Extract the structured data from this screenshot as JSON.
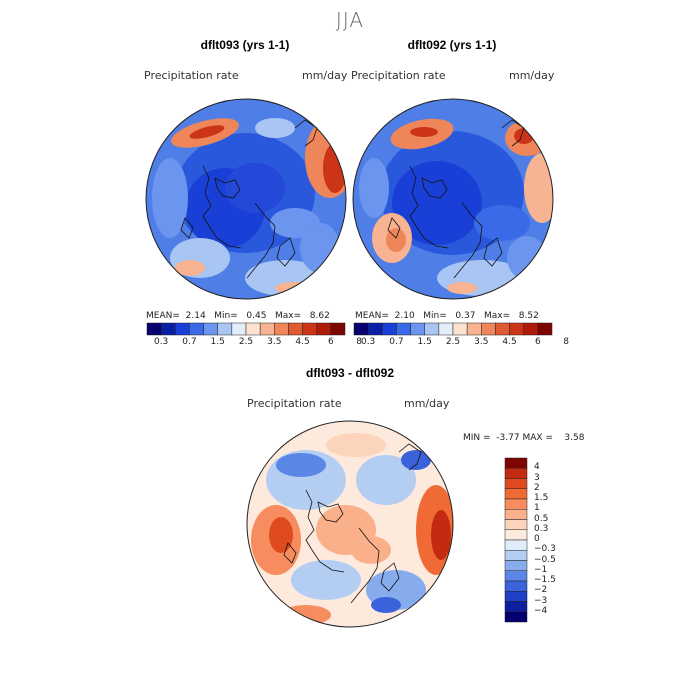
{
  "figure": {
    "season": "JJA"
  },
  "panels": [
    {
      "title": "dflt093 (yrs 1-1)",
      "variable": "Precipitation rate",
      "units": "mm/day",
      "mean_label": "MEAN=",
      "mean": "2.14",
      "min_label": "Min=",
      "min": "0.45",
      "max_label": "Max=",
      "max": "8.62"
    },
    {
      "title": "dflt092 (yrs 1-1)",
      "variable": "Precipitation rate",
      "units": "mm/day",
      "mean_label": "MEAN=",
      "mean": "2.10",
      "min_label": "Min=",
      "min": "0.37",
      "max_label": "Max=",
      "max": "8.52"
    }
  ],
  "diff_panel": {
    "title": "dflt093 - dflt092",
    "variable": "Precipitation rate",
    "units": "mm/day",
    "min_label": "MIN =",
    "min": "-3.77",
    "max_label": "MAX =",
    "max": "3.58"
  },
  "colorbar_abs": {
    "colors": [
      "#08006e",
      "#0a1fa6",
      "#1a3fd6",
      "#3a6ae8",
      "#6b95ee",
      "#a9c5f3",
      "#e3eefb",
      "#fde2cf",
      "#f7b392",
      "#ee8659",
      "#e05a32",
      "#cc3418",
      "#b01a08",
      "#7e0500"
    ],
    "tick_labels": [
      "0.3",
      "0.7",
      "1.5",
      "2.5",
      "3.5",
      "4.5",
      "6",
      "8"
    ]
  },
  "colorbar_diff": {
    "colors": [
      "#7e0500",
      "#c42a10",
      "#e04a1f",
      "#f06a36",
      "#f78d5e",
      "#fab08a",
      "#fcd3bb",
      "#fdeadc",
      "#e1ecfa",
      "#b3cdf3",
      "#86aced",
      "#5a86e6",
      "#3a63db",
      "#2040c8",
      "#0d1fa0",
      "#04006e"
    ],
    "tick_labels": [
      "4",
      "3",
      "2",
      "1.5",
      "1",
      "0.5",
      "0.3",
      "0",
      "−0.3",
      "−0.5",
      "−1",
      "−1.5",
      "−2",
      "−3",
      "−4"
    ]
  }
}
